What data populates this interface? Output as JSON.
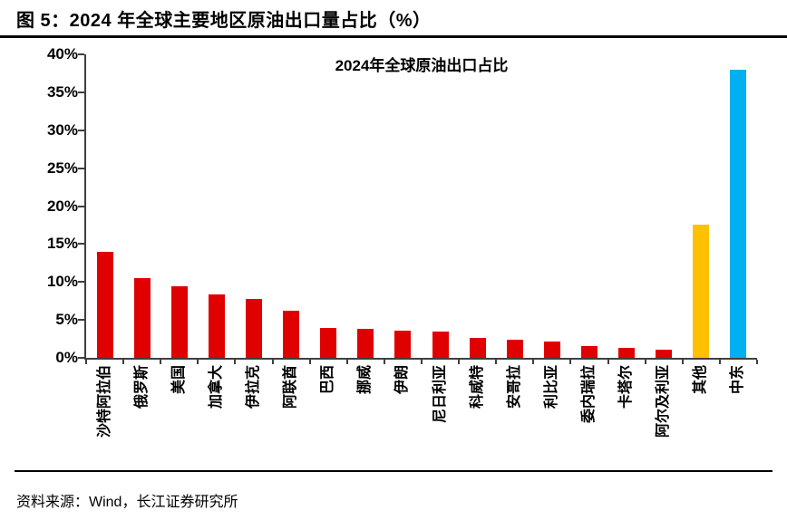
{
  "page": {
    "figure_label": "图 5：2024 年全球主要地区原油出口量占比（%）",
    "source_note": "资料来源：Wind，长江证券研究所"
  },
  "chart_data": {
    "type": "bar",
    "title": "2024年全球原油出口占比",
    "categories": [
      "沙特阿拉伯",
      "俄罗斯",
      "美国",
      "加拿大",
      "伊拉克",
      "阿联酋",
      "巴西",
      "挪威",
      "伊朗",
      "尼日利亚",
      "科威特",
      "安哥拉",
      "利比亚",
      "委内瑞拉",
      "卡塔尔",
      "阿尔及利亚",
      "其他",
      "中东"
    ],
    "values": [
      14.0,
      10.5,
      9.4,
      8.3,
      7.8,
      6.2,
      4.0,
      3.8,
      3.6,
      3.5,
      2.6,
      2.4,
      2.2,
      1.5,
      1.3,
      1.1,
      17.5,
      38.0
    ],
    "bar_colors": [
      "#e00000",
      "#e00000",
      "#e00000",
      "#e00000",
      "#e00000",
      "#e00000",
      "#e00000",
      "#e00000",
      "#e00000",
      "#e00000",
      "#e00000",
      "#e00000",
      "#e00000",
      "#e00000",
      "#e00000",
      "#e00000",
      "#ffc000",
      "#00b0f0"
    ],
    "unit": "%",
    "xlabel": "",
    "ylabel": "",
    "ylim": [
      0,
      40
    ],
    "yticks": [
      0,
      5,
      10,
      15,
      20,
      25,
      30,
      35,
      40
    ],
    "ytick_labels": [
      "0%",
      "5%",
      "10%",
      "15%",
      "20%",
      "25%",
      "30%",
      "35%",
      "40%"
    ],
    "grid": false,
    "legend_position": "none",
    "accent_colors": {
      "default_bar": "#e00000",
      "others_bar": "#ffc000",
      "middle_east_bar": "#00b0f0"
    }
  }
}
